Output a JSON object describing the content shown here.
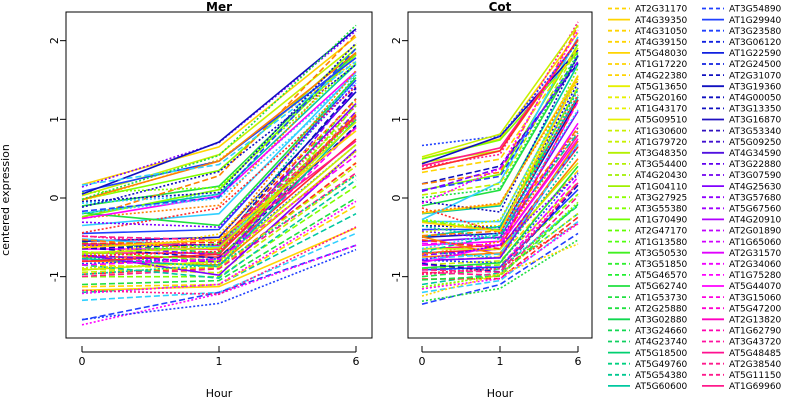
{
  "chart_data": [
    {
      "type": "line",
      "title": "Mer",
      "xlabel": "Hour",
      "ylabel": "centered expression",
      "x": [
        0,
        1,
        6
      ],
      "xticks": [
        "0",
        "1",
        "6"
      ],
      "yticks": [
        "-1",
        "0",
        "1",
        "2"
      ],
      "ylim": [
        -1.75,
        2.3
      ],
      "grid": false,
      "series_count": 80,
      "series": [
        {
          "values": [
            0.17,
            0.65,
            2.05
          ]
        },
        {
          "values": [
            0.03,
            0.55,
            1.95
          ]
        },
        {
          "values": [
            -0.02,
            0.35,
            1.9
          ]
        },
        {
          "values": [
            -0.1,
            0.15,
            1.85
          ]
        },
        {
          "values": [
            -0.2,
            0.05,
            1.7
          ]
        },
        {
          "values": [
            -0.35,
            -0.2,
            1.6
          ]
        },
        {
          "values": [
            -0.45,
            -0.4,
            1.5
          ]
        },
        {
          "values": [
            -0.55,
            -0.5,
            1.35
          ]
        },
        {
          "values": [
            -0.6,
            -0.6,
            1.2
          ]
        },
        {
          "values": [
            -0.65,
            -0.65,
            1.05
          ]
        },
        {
          "values": [
            -0.7,
            -0.7,
            0.9
          ]
        },
        {
          "values": [
            -0.75,
            -0.75,
            0.75
          ]
        },
        {
          "values": [
            -0.8,
            -0.85,
            0.6
          ]
        },
        {
          "values": [
            -0.85,
            -0.9,
            0.45
          ]
        },
        {
          "values": [
            -0.9,
            -0.95,
            0.3
          ]
        },
        {
          "values": [
            -1.0,
            -1.0,
            0.15
          ]
        },
        {
          "values": [
            -1.1,
            -1.05,
            0.0
          ]
        },
        {
          "values": [
            -1.2,
            -1.1,
            -0.2
          ]
        },
        {
          "values": [
            -1.3,
            -1.2,
            -0.45
          ]
        },
        {
          "values": [
            -1.55,
            -1.2,
            -0.6
          ]
        }
      ]
    },
    {
      "type": "line",
      "title": "Cot",
      "xlabel": "Hour",
      "x": [
        0,
        1,
        6
      ],
      "xticks": [
        "0",
        "1",
        "6"
      ],
      "yticks": [
        "-1",
        "0",
        "1",
        "2"
      ],
      "ylim": [
        -1.75,
        2.3
      ],
      "grid": false,
      "series_count": 80,
      "series": [
        {
          "values": [
            0.5,
            0.75,
            2.1
          ]
        },
        {
          "values": [
            0.45,
            0.6,
            2.0
          ]
        },
        {
          "values": [
            0.1,
            0.3,
            1.95
          ]
        },
        {
          "values": [
            -0.1,
            0.1,
            1.8
          ]
        },
        {
          "values": [
            -0.2,
            -0.1,
            1.7
          ]
        },
        {
          "values": [
            -0.3,
            -0.3,
            1.55
          ]
        },
        {
          "values": [
            -0.4,
            -0.4,
            1.4
          ]
        },
        {
          "values": [
            -0.5,
            -0.45,
            1.25
          ]
        },
        {
          "values": [
            -0.55,
            -0.5,
            1.1
          ]
        },
        {
          "values": [
            -0.6,
            -0.55,
            0.95
          ]
        },
        {
          "values": [
            -0.65,
            -0.6,
            0.8
          ]
        },
        {
          "values": [
            -0.7,
            -0.65,
            0.65
          ]
        },
        {
          "values": [
            -0.75,
            -0.7,
            0.5
          ]
        },
        {
          "values": [
            -0.8,
            -0.75,
            0.35
          ]
        },
        {
          "values": [
            -0.85,
            -0.8,
            0.2
          ]
        },
        {
          "values": [
            -0.9,
            -0.85,
            0.05
          ]
        },
        {
          "values": [
            -1.0,
            -0.9,
            -0.1
          ]
        },
        {
          "values": [
            -1.1,
            -0.95,
            -0.2
          ]
        },
        {
          "values": [
            -1.2,
            -1.05,
            -0.3
          ]
        },
        {
          "values": [
            -1.35,
            -1.1,
            -0.45
          ]
        }
      ]
    }
  ],
  "palette": [
    "#ffd400",
    "#c8f000",
    "#80ff00",
    "#20e040",
    "#00c8a0",
    "#30d0ff",
    "#2040ff",
    "#1010c0",
    "#8000ff",
    "#ff00ff",
    "#ff1a8c",
    "#ff2a2a",
    "#ff8000"
  ],
  "legend": {
    "placement": "right",
    "entries": [
      {
        "label": "AT2G31170",
        "color": "#ffd400",
        "dash": true
      },
      {
        "label": "AT4G39350",
        "color": "#ffd400",
        "dash": false
      },
      {
        "label": "AT4G31050",
        "color": "#ffd400",
        "dash": true
      },
      {
        "label": "AT4G39150",
        "color": "#ffd400",
        "dash": true
      },
      {
        "label": "AT5G48030",
        "color": "#ffd400",
        "dash": false
      },
      {
        "label": "AT1G17220",
        "color": "#ffd400",
        "dash": true
      },
      {
        "label": "AT4G22380",
        "color": "#ffd400",
        "dash": true
      },
      {
        "label": "AT5G13650",
        "color": "#e6f000",
        "dash": false
      },
      {
        "label": "AT5G20160",
        "color": "#e6f000",
        "dash": true
      },
      {
        "label": "AT1G43170",
        "color": "#e6f000",
        "dash": true
      },
      {
        "label": "AT5G09510",
        "color": "#e6f000",
        "dash": false
      },
      {
        "label": "AT1G30600",
        "color": "#c8f000",
        "dash": true
      },
      {
        "label": "AT1G79720",
        "color": "#c8f000",
        "dash": true
      },
      {
        "label": "AT3G48350",
        "color": "#b4f000",
        "dash": false
      },
      {
        "label": "AT3G54400",
        "color": "#b4f000",
        "dash": true
      },
      {
        "label": "AT4G20430",
        "color": "#a0f000",
        "dash": true
      },
      {
        "label": "AT1G04110",
        "color": "#a0f000",
        "dash": false
      },
      {
        "label": "AT3G27925",
        "color": "#8cff00",
        "dash": true
      },
      {
        "label": "AT3G55380",
        "color": "#80ff00",
        "dash": true
      },
      {
        "label": "AT1G70490",
        "color": "#70ff00",
        "dash": false
      },
      {
        "label": "AT2G47170",
        "color": "#60ff00",
        "dash": true
      },
      {
        "label": "AT1G13580",
        "color": "#50ff10",
        "dash": true
      },
      {
        "label": "AT3G50530",
        "color": "#40f020",
        "dash": false
      },
      {
        "label": "AT3G51850",
        "color": "#30f030",
        "dash": true
      },
      {
        "label": "AT5G46570",
        "color": "#20f030",
        "dash": true
      },
      {
        "label": "AT5G62740",
        "color": "#20e040",
        "dash": false
      },
      {
        "label": "AT1G53730",
        "color": "#20e040",
        "dash": true
      },
      {
        "label": "AT2G25880",
        "color": "#20e040",
        "dash": true
      },
      {
        "label": "AT3G02880",
        "color": "#10d850",
        "dash": false
      },
      {
        "label": "AT3G24660",
        "color": "#10d850",
        "dash": true
      },
      {
        "label": "AT4G23740",
        "color": "#10d060",
        "dash": true
      },
      {
        "label": "AT5G18500",
        "color": "#00d070",
        "dash": false
      },
      {
        "label": "AT5G49760",
        "color": "#00d080",
        "dash": true
      },
      {
        "label": "AT5G54380",
        "color": "#00c890",
        "dash": true
      },
      {
        "label": "AT5G60600",
        "color": "#00c8a0",
        "dash": false
      },
      {
        "label": "AT3G54890",
        "color": "#2040ff",
        "dash": true
      },
      {
        "label": "AT1G29940",
        "color": "#2040ff",
        "dash": false
      },
      {
        "label": "AT3G23580",
        "color": "#2040ff",
        "dash": true
      },
      {
        "label": "AT3G06120",
        "color": "#1020e0",
        "dash": true
      },
      {
        "label": "AT1G22590",
        "color": "#1020e0",
        "dash": false
      },
      {
        "label": "AT2G24500",
        "color": "#1020e0",
        "dash": true
      },
      {
        "label": "AT2G31070",
        "color": "#1010c0",
        "dash": true
      },
      {
        "label": "AT3G19360",
        "color": "#1010c0",
        "dash": false
      },
      {
        "label": "AT4G00050",
        "color": "#1010c0",
        "dash": true
      },
      {
        "label": "AT3G13350",
        "color": "#1010c0",
        "dash": true
      },
      {
        "label": "AT3G16870",
        "color": "#2010c0",
        "dash": false
      },
      {
        "label": "AT3G53340",
        "color": "#3010c0",
        "dash": true
      },
      {
        "label": "AT5G09250",
        "color": "#4010d0",
        "dash": true
      },
      {
        "label": "AT4G34590",
        "color": "#5010e0",
        "dash": false
      },
      {
        "label": "AT3G22880",
        "color": "#6000f0",
        "dash": true
      },
      {
        "label": "AT3G07590",
        "color": "#7000f0",
        "dash": true
      },
      {
        "label": "AT4G25630",
        "color": "#8000ff",
        "dash": false
      },
      {
        "label": "AT3G57680",
        "color": "#9000ff",
        "dash": true
      },
      {
        "label": "AT5G67560",
        "color": "#a000ff",
        "dash": true
      },
      {
        "label": "AT4G20910",
        "color": "#b000ff",
        "dash": false
      },
      {
        "label": "AT2G01890",
        "color": "#c000ff",
        "dash": true
      },
      {
        "label": "AT1G65060",
        "color": "#d000ff",
        "dash": true
      },
      {
        "label": "AT2G31570",
        "color": "#e000ff",
        "dash": false
      },
      {
        "label": "AT2G34060",
        "color": "#f000ff",
        "dash": true
      },
      {
        "label": "AT1G75280",
        "color": "#ff00ff",
        "dash": true
      },
      {
        "label": "AT5G44070",
        "color": "#ff00ff",
        "dash": false
      },
      {
        "label": "AT3G15060",
        "color": "#ff00e0",
        "dash": true
      },
      {
        "label": "AT5G47200",
        "color": "#ff00d0",
        "dash": true
      },
      {
        "label": "AT2G13820",
        "color": "#ff00c0",
        "dash": false
      },
      {
        "label": "AT1G62790",
        "color": "#ff00b0",
        "dash": true
      },
      {
        "label": "AT3G43720",
        "color": "#ff10a0",
        "dash": true
      },
      {
        "label": "AT5G48485",
        "color": "#ff1090",
        "dash": false
      },
      {
        "label": "AT2G38540",
        "color": "#ff1a8c",
        "dash": true
      },
      {
        "label": "AT5G11150",
        "color": "#ff1a8c",
        "dash": true
      },
      {
        "label": "AT1G69960",
        "color": "#ff1a8c",
        "dash": false
      }
    ]
  }
}
